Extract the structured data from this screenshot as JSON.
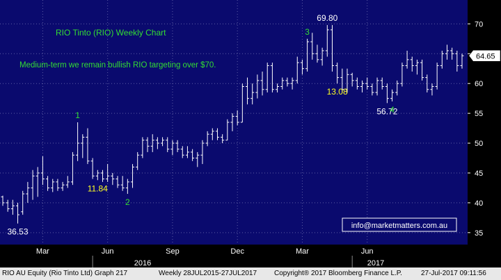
{
  "chart_data": {
    "type": "ohlc",
    "title": "RIO Tinto (RIO) Weekly Chart",
    "subtitle": "Medium-term we remain bullish RIO targeting over $70.",
    "ylim": [
      33,
      74
    ],
    "y_ticks": [
      35,
      40,
      45,
      50,
      55,
      60,
      65,
      70
    ],
    "x_tick_labels": [
      "Mar",
      "Jun",
      "Sep",
      "Dec",
      "Mar",
      "Jun"
    ],
    "year_labels": [
      "2016",
      "2017"
    ],
    "last_price": "64.65",
    "watermark": "info@marketmatters.com.au",
    "colors": {
      "background": "#0a0a6e",
      "grid": "#5d5da3",
      "bars": "#ffffff",
      "green_labels": "#33dd33",
      "yellow_labels": "#ffff22",
      "axis_panel": "#000000"
    },
    "bars": [
      {
        "o": 41.0,
        "h": 41.2,
        "l": 39.5,
        "c": 40.0
      },
      {
        "o": 40.0,
        "h": 40.5,
        "l": 38.5,
        "c": 39.0
      },
      {
        "o": 39.0,
        "h": 40.5,
        "l": 38.0,
        "c": 39.5
      },
      {
        "o": 39.5,
        "h": 40.0,
        "l": 36.53,
        "c": 38.0
      },
      {
        "o": 38.5,
        "h": 42.0,
        "l": 38.0,
        "c": 41.5
      },
      {
        "o": 41.5,
        "h": 43.5,
        "l": 40.0,
        "c": 42.5
      },
      {
        "o": 42.5,
        "h": 45.5,
        "l": 40.5,
        "c": 44.5
      },
      {
        "o": 44.5,
        "h": 46.0,
        "l": 41.0,
        "c": 45.0
      },
      {
        "o": 45.0,
        "h": 47.8,
        "l": 43.0,
        "c": 44.0
      },
      {
        "o": 44.0,
        "h": 44.5,
        "l": 42.0,
        "c": 42.5
      },
      {
        "o": 42.5,
        "h": 44.0,
        "l": 41.8,
        "c": 43.5
      },
      {
        "o": 43.5,
        "h": 44.0,
        "l": 42.0,
        "c": 42.5
      },
      {
        "o": 42.5,
        "h": 43.5,
        "l": 42.0,
        "c": 43.0
      },
      {
        "o": 43.0,
        "h": 44.5,
        "l": 42.5,
        "c": 43.5
      },
      {
        "o": 43.5,
        "h": 48.5,
        "l": 43.0,
        "c": 48.0
      },
      {
        "o": 48.0,
        "h": 53.5,
        "l": 47.0,
        "c": 50.0
      },
      {
        "o": 50.0,
        "h": 51.5,
        "l": 47.5,
        "c": 51.0
      },
      {
        "o": 51.0,
        "h": 52.5,
        "l": 46.5,
        "c": 47.0
      },
      {
        "o": 47.0,
        "h": 47.5,
        "l": 44.0,
        "c": 44.5
      },
      {
        "o": 44.5,
        "h": 45.5,
        "l": 43.8,
        "c": 45.0
      },
      {
        "o": 45.0,
        "h": 45.5,
        "l": 43.5,
        "c": 44.0
      },
      {
        "o": 44.0,
        "h": 46.5,
        "l": 43.5,
        "c": 44.5
      },
      {
        "o": 44.5,
        "h": 45.0,
        "l": 43.0,
        "c": 44.0
      },
      {
        "o": 44.0,
        "h": 44.5,
        "l": 42.5,
        "c": 43.0
      },
      {
        "o": 43.0,
        "h": 44.5,
        "l": 42.0,
        "c": 42.5
      },
      {
        "o": 42.5,
        "h": 44.0,
        "l": 41.5,
        "c": 43.5
      },
      {
        "o": 43.5,
        "h": 46.5,
        "l": 42.5,
        "c": 46.0
      },
      {
        "o": 46.0,
        "h": 48.5,
        "l": 45.5,
        "c": 48.0
      },
      {
        "o": 48.0,
        "h": 51.0,
        "l": 47.5,
        "c": 50.5
      },
      {
        "o": 50.5,
        "h": 51.0,
        "l": 48.5,
        "c": 49.5
      },
      {
        "o": 49.5,
        "h": 51.5,
        "l": 48.5,
        "c": 50.5
      },
      {
        "o": 50.5,
        "h": 51.0,
        "l": 49.0,
        "c": 50.0
      },
      {
        "o": 50.0,
        "h": 51.0,
        "l": 49.5,
        "c": 50.5
      },
      {
        "o": 50.5,
        "h": 51.0,
        "l": 48.5,
        "c": 49.0
      },
      {
        "o": 49.0,
        "h": 50.5,
        "l": 48.0,
        "c": 50.0
      },
      {
        "o": 50.0,
        "h": 50.5,
        "l": 48.5,
        "c": 49.0
      },
      {
        "o": 49.0,
        "h": 49.5,
        "l": 47.5,
        "c": 48.0
      },
      {
        "o": 48.0,
        "h": 49.5,
        "l": 47.5,
        "c": 48.5
      },
      {
        "o": 48.5,
        "h": 49.0,
        "l": 47.0,
        "c": 47.5
      },
      {
        "o": 47.5,
        "h": 48.5,
        "l": 46.0,
        "c": 48.0
      },
      {
        "o": 48.0,
        "h": 50.5,
        "l": 46.5,
        "c": 50.0
      },
      {
        "o": 50.0,
        "h": 52.0,
        "l": 49.5,
        "c": 51.5
      },
      {
        "o": 51.5,
        "h": 52.5,
        "l": 50.5,
        "c": 52.0
      },
      {
        "o": 52.0,
        "h": 52.5,
        "l": 50.5,
        "c": 51.0
      },
      {
        "o": 51.0,
        "h": 51.5,
        "l": 50.0,
        "c": 50.5
      },
      {
        "o": 50.5,
        "h": 54.0,
        "l": 50.5,
        "c": 53.5
      },
      {
        "o": 53.5,
        "h": 55.0,
        "l": 52.0,
        "c": 54.5
      },
      {
        "o": 54.5,
        "h": 55.5,
        "l": 53.0,
        "c": 53.5
      },
      {
        "o": 53.5,
        "h": 60.0,
        "l": 53.5,
        "c": 59.5
      },
      {
        "o": 59.5,
        "h": 61.0,
        "l": 56.5,
        "c": 57.5
      },
      {
        "o": 57.5,
        "h": 60.0,
        "l": 56.5,
        "c": 58.5
      },
      {
        "o": 58.5,
        "h": 61.5,
        "l": 57.5,
        "c": 60.5
      },
      {
        "o": 60.5,
        "h": 62.0,
        "l": 58.0,
        "c": 59.0
      },
      {
        "o": 59.0,
        "h": 63.5,
        "l": 58.5,
        "c": 63.0
      },
      {
        "o": 63.0,
        "h": 63.5,
        "l": 58.5,
        "c": 59.0
      },
      {
        "o": 59.0,
        "h": 60.0,
        "l": 58.5,
        "c": 59.5
      },
      {
        "o": 59.5,
        "h": 61.0,
        "l": 59.0,
        "c": 60.5
      },
      {
        "o": 60.5,
        "h": 61.0,
        "l": 59.5,
        "c": 60.0
      },
      {
        "o": 60.0,
        "h": 61.0,
        "l": 59.0,
        "c": 60.5
      },
      {
        "o": 60.5,
        "h": 64.5,
        "l": 60.0,
        "c": 63.5
      },
      {
        "o": 63.5,
        "h": 64.0,
        "l": 61.5,
        "c": 62.5
      },
      {
        "o": 62.5,
        "h": 67.5,
        "l": 62.0,
        "c": 67.0
      },
      {
        "o": 67.0,
        "h": 68.5,
        "l": 64.0,
        "c": 65.0
      },
      {
        "o": 65.0,
        "h": 66.5,
        "l": 63.5,
        "c": 64.0
      },
      {
        "o": 64.0,
        "h": 66.0,
        "l": 63.0,
        "c": 65.5
      },
      {
        "o": 65.5,
        "h": 69.8,
        "l": 64.5,
        "c": 69.0
      },
      {
        "o": 69.0,
        "h": 69.8,
        "l": 62.0,
        "c": 63.0
      },
      {
        "o": 63.0,
        "h": 63.5,
        "l": 60.0,
        "c": 61.0
      },
      {
        "o": 61.0,
        "h": 62.5,
        "l": 58.5,
        "c": 59.0
      },
      {
        "o": 59.0,
        "h": 62.5,
        "l": 58.5,
        "c": 61.5
      },
      {
        "o": 61.5,
        "h": 61.8,
        "l": 59.5,
        "c": 60.5
      },
      {
        "o": 60.5,
        "h": 61.0,
        "l": 59.0,
        "c": 59.5
      },
      {
        "o": 59.5,
        "h": 60.5,
        "l": 58.5,
        "c": 60.0
      },
      {
        "o": 60.0,
        "h": 61.0,
        "l": 59.0,
        "c": 59.5
      },
      {
        "o": 59.5,
        "h": 60.0,
        "l": 58.0,
        "c": 58.5
      },
      {
        "o": 58.5,
        "h": 61.0,
        "l": 58.0,
        "c": 60.5
      },
      {
        "o": 60.5,
        "h": 61.0,
        "l": 59.0,
        "c": 59.5
      },
      {
        "o": 59.5,
        "h": 60.0,
        "l": 56.72,
        "c": 57.5
      },
      {
        "o": 57.5,
        "h": 59.0,
        "l": 57.0,
        "c": 58.5
      },
      {
        "o": 58.5,
        "h": 60.5,
        "l": 58.0,
        "c": 60.0
      },
      {
        "o": 60.0,
        "h": 63.5,
        "l": 59.5,
        "c": 63.0
      },
      {
        "o": 63.0,
        "h": 65.5,
        "l": 62.5,
        "c": 64.0
      },
      {
        "o": 64.0,
        "h": 64.5,
        "l": 62.0,
        "c": 63.0
      },
      {
        "o": 63.0,
        "h": 64.0,
        "l": 61.5,
        "c": 63.5
      },
      {
        "o": 63.5,
        "h": 64.0,
        "l": 60.5,
        "c": 61.0
      },
      {
        "o": 61.0,
        "h": 61.5,
        "l": 58.5,
        "c": 59.0
      },
      {
        "o": 59.0,
        "h": 60.0,
        "l": 58.0,
        "c": 59.5
      },
      {
        "o": 59.5,
        "h": 63.5,
        "l": 59.0,
        "c": 63.0
      },
      {
        "o": 63.0,
        "h": 65.5,
        "l": 62.5,
        "c": 65.0
      },
      {
        "o": 65.0,
        "h": 66.5,
        "l": 64.0,
        "c": 65.5
      },
      {
        "o": 65.5,
        "h": 66.0,
        "l": 64.0,
        "c": 65.0
      },
      {
        "o": 65.0,
        "h": 65.5,
        "l": 62.0,
        "c": 63.0
      },
      {
        "o": 63.0,
        "h": 65.0,
        "l": 62.5,
        "c": 64.65
      }
    ],
    "annotations": [
      {
        "bar": 3,
        "at": "low",
        "text": "36.53",
        "color": "white"
      },
      {
        "bar": 15,
        "at": "high",
        "text": "1",
        "color": "green"
      },
      {
        "bar": 19,
        "at": "low",
        "text": "11.84",
        "color": "yellow"
      },
      {
        "bar": 25,
        "at": "low",
        "text": "2",
        "color": "green"
      },
      {
        "bar": 61,
        "at": "high",
        "text": "3",
        "color": "green"
      },
      {
        "bar": 65,
        "at": "high",
        "text": "69.80",
        "color": "white"
      },
      {
        "bar": 67,
        "at": "low",
        "text": "13.08",
        "color": "yellow"
      },
      {
        "bar": 77,
        "at": "low",
        "text": "56.72",
        "color": "white"
      },
      {
        "bar": 78,
        "at": "low",
        "text": "4",
        "color": "green"
      }
    ]
  },
  "footer": {
    "security": "RIO AU Equity (Rio Tinto Ltd) Graph 217",
    "range": "Weekly 28JUL2015-27JUL2017",
    "copyright": "Copyright® 2017 Bloomberg Finance L.P.",
    "timestamp": "27-Jul-2017 09:11:56"
  }
}
